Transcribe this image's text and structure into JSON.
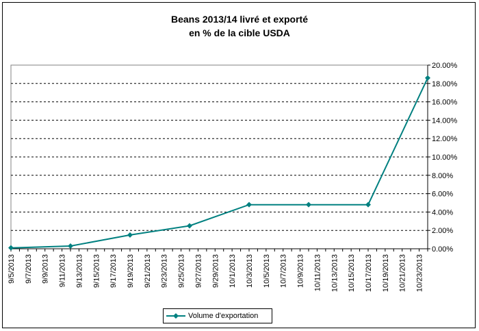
{
  "chart_data": {
    "type": "line",
    "title_line1": "Beans 2013/14 livré et exporté",
    "title_line2": "en % de la cible USDA",
    "x_start": "2013-09-05",
    "x_end": "2013-10-24",
    "x_ticks": [
      "9/5/2013",
      "9/7/2013",
      "9/9/2013",
      "9/11/2013",
      "9/13/2013",
      "9/15/2013",
      "9/17/2013",
      "9/19/2013",
      "9/21/2013",
      "9/23/2013",
      "9/25/2013",
      "9/27/2013",
      "9/29/2013",
      "10/1/2013",
      "10/3/2013",
      "10/5/2013",
      "10/7/2013",
      "10/9/2013",
      "10/11/2013",
      "10/13/2013",
      "10/15/2013",
      "10/17/2013",
      "10/19/2013",
      "10/21/2013",
      "10/23/2013"
    ],
    "ylim": [
      0,
      20
    ],
    "y_ticks": [
      "0.00%",
      "2.00%",
      "4.00%",
      "6.00%",
      "8.00%",
      "10.00%",
      "12.00%",
      "14.00%",
      "16.00%",
      "18.00%",
      "20.00%"
    ],
    "grid": true,
    "legend_position": "bottom",
    "series": [
      {
        "name": "Volume d'exportation",
        "color": "#008080",
        "marker": "diamond",
        "points": [
          {
            "x": "2013-09-05",
            "y": 0.1
          },
          {
            "x": "2013-09-12",
            "y": 0.3
          },
          {
            "x": "2013-09-19",
            "y": 1.5
          },
          {
            "x": "2013-09-26",
            "y": 2.5
          },
          {
            "x": "2013-10-03",
            "y": 4.8
          },
          {
            "x": "2013-10-10",
            "y": 4.8
          },
          {
            "x": "2013-10-17",
            "y": 4.8
          },
          {
            "x": "2013-10-24",
            "y": 18.6
          }
        ]
      }
    ]
  }
}
